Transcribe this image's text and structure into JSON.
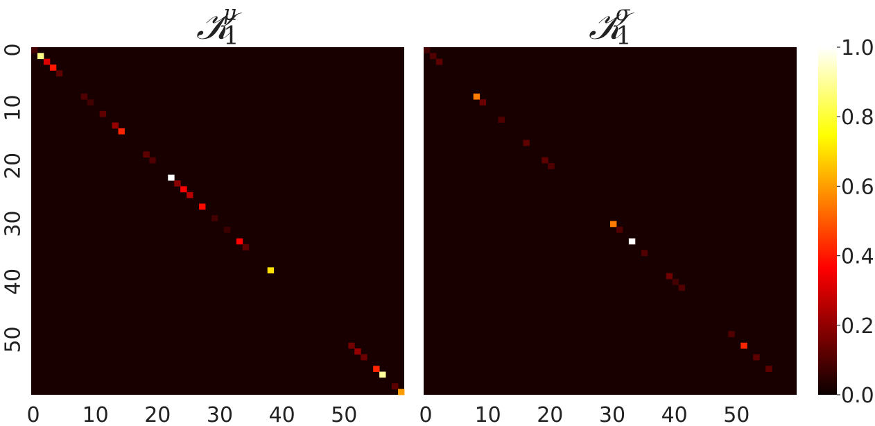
{
  "chart_data": [
    {
      "type": "heatmap",
      "title": {
        "base": "𝒦",
        "sub": "1",
        "sup": "μ"
      },
      "matrix_size": 60,
      "xticks": [
        "0",
        "10",
        "20",
        "30",
        "40",
        "50"
      ],
      "yticks": [
        "0",
        "10",
        "20",
        "30",
        "40",
        "50"
      ],
      "value_range": [
        0,
        1
      ],
      "colormap": "hot",
      "background_value": 0.02,
      "cells": [
        {
          "row": 0,
          "col": 0,
          "value": 0.08
        },
        {
          "row": 1,
          "col": 1,
          "value": 0.88
        },
        {
          "row": 2,
          "col": 2,
          "value": 0.3
        },
        {
          "row": 3,
          "col": 3,
          "value": 0.4
        },
        {
          "row": 4,
          "col": 4,
          "value": 0.12
        },
        {
          "row": 8,
          "col": 8,
          "value": 0.1
        },
        {
          "row": 9,
          "col": 9,
          "value": 0.08
        },
        {
          "row": 11,
          "col": 11,
          "value": 0.12
        },
        {
          "row": 13,
          "col": 13,
          "value": 0.2
        },
        {
          "row": 14,
          "col": 14,
          "value": 0.42
        },
        {
          "row": 18,
          "col": 18,
          "value": 0.12
        },
        {
          "row": 19,
          "col": 19,
          "value": 0.1
        },
        {
          "row": 22,
          "col": 22,
          "value": 1.0
        },
        {
          "row": 23,
          "col": 23,
          "value": 0.18
        },
        {
          "row": 24,
          "col": 24,
          "value": 0.35
        },
        {
          "row": 25,
          "col": 25,
          "value": 0.25
        },
        {
          "row": 27,
          "col": 27,
          "value": 0.38
        },
        {
          "row": 29,
          "col": 29,
          "value": 0.08
        },
        {
          "row": 31,
          "col": 31,
          "value": 0.07
        },
        {
          "row": 33,
          "col": 33,
          "value": 0.35
        },
        {
          "row": 34,
          "col": 34,
          "value": 0.12
        },
        {
          "row": 38,
          "col": 38,
          "value": 0.7
        },
        {
          "row": 51,
          "col": 51,
          "value": 0.15
        },
        {
          "row": 52,
          "col": 52,
          "value": 0.2
        },
        {
          "row": 53,
          "col": 53,
          "value": 0.14
        },
        {
          "row": 55,
          "col": 55,
          "value": 0.42
        },
        {
          "row": 56,
          "col": 56,
          "value": 0.9
        },
        {
          "row": 58,
          "col": 58,
          "value": 0.12
        },
        {
          "row": 59,
          "col": 59,
          "value": 0.6
        }
      ]
    },
    {
      "type": "heatmap",
      "title": {
        "base": "𝒦",
        "sub": "1",
        "sup": "σ"
      },
      "matrix_size": 60,
      "xticks": [
        "0",
        "10",
        "20",
        "30",
        "40",
        "50"
      ],
      "yticks": [],
      "value_range": [
        0,
        1
      ],
      "colormap": "hot",
      "background_value": 0.02,
      "cells": [
        {
          "row": 0,
          "col": 0,
          "value": 0.08
        },
        {
          "row": 1,
          "col": 1,
          "value": 0.1
        },
        {
          "row": 2,
          "col": 2,
          "value": 0.12
        },
        {
          "row": 8,
          "col": 8,
          "value": 0.55
        },
        {
          "row": 9,
          "col": 9,
          "value": 0.14
        },
        {
          "row": 12,
          "col": 12,
          "value": 0.1
        },
        {
          "row": 16,
          "col": 16,
          "value": 0.12
        },
        {
          "row": 19,
          "col": 19,
          "value": 0.12
        },
        {
          "row": 20,
          "col": 20,
          "value": 0.1
        },
        {
          "row": 30,
          "col": 30,
          "value": 0.55
        },
        {
          "row": 31,
          "col": 31,
          "value": 0.1
        },
        {
          "row": 33,
          "col": 33,
          "value": 1.0
        },
        {
          "row": 35,
          "col": 35,
          "value": 0.1
        },
        {
          "row": 39,
          "col": 39,
          "value": 0.14
        },
        {
          "row": 40,
          "col": 40,
          "value": 0.08
        },
        {
          "row": 41,
          "col": 41,
          "value": 0.1
        },
        {
          "row": 49,
          "col": 49,
          "value": 0.1
        },
        {
          "row": 51,
          "col": 51,
          "value": 0.42
        },
        {
          "row": 53,
          "col": 53,
          "value": 0.12
        },
        {
          "row": 55,
          "col": 55,
          "value": 0.12
        }
      ]
    }
  ],
  "colorbar": {
    "ticks": [
      "0.0",
      "0.2",
      "0.4",
      "0.6",
      "0.8",
      "1.0"
    ],
    "range": [
      0,
      1
    ],
    "colormap": "hot"
  }
}
